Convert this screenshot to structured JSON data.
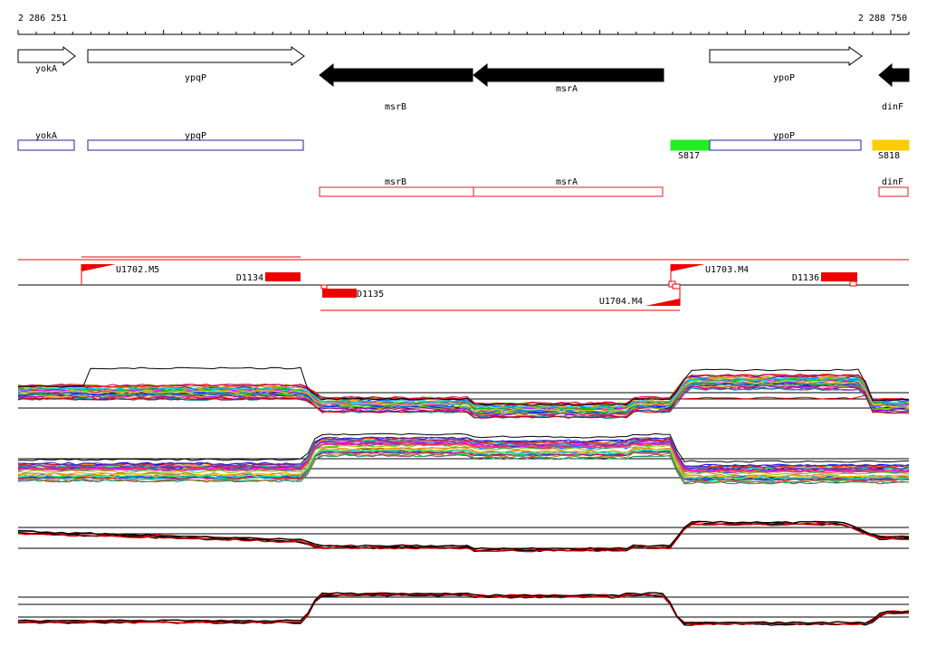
{
  "ruler": {
    "start_label": "2 286 251",
    "end_label": "2 288 750"
  },
  "genes_track": [
    {
      "name": "yokA",
      "strand": "+",
      "fill": "#ffffff"
    },
    {
      "name": "ypqP",
      "strand": "+",
      "fill": "#ffffff"
    },
    {
      "name": "msrB",
      "strand": "-",
      "fill": "#000000"
    },
    {
      "name": "msrA",
      "strand": "-",
      "fill": "#000000"
    },
    {
      "name": "ypoP",
      "strand": "+",
      "fill": "#ffffff"
    },
    {
      "name": "dinF",
      "strand": "-",
      "fill": "#000000"
    }
  ],
  "plus_features_track": [
    {
      "name": "yokA",
      "color": "#2222aa"
    },
    {
      "name": "ypqP",
      "color": "#2222aa"
    },
    {
      "name": "S817",
      "color": "#22ee22",
      "filled": true
    },
    {
      "name": "ypoP",
      "color": "#2222aa"
    },
    {
      "name": "S818",
      "color": "#ffcc00",
      "filled": true
    }
  ],
  "minus_features_track": [
    {
      "name": "msrB",
      "color": "#dd2222"
    },
    {
      "name": "msrA",
      "color": "#dd2222"
    },
    {
      "name": "dinF",
      "color": "#dd2222"
    }
  ],
  "transcript_track": {
    "plus_labels": [
      "U1702.M5",
      "D1134",
      "U1703.M4",
      "D1136"
    ],
    "minus_labels": [
      "D1135",
      "U1704.M4"
    ],
    "accent": "#ee0000"
  },
  "expression_panels": [
    {
      "name": "plus-strand-conditions",
      "style": "multicolor"
    },
    {
      "name": "minus-strand-conditions",
      "style": "multicolor"
    },
    {
      "name": "plus-strand-summary",
      "style": "red-black"
    },
    {
      "name": "minus-strand-summary",
      "style": "red-black"
    }
  ]
}
